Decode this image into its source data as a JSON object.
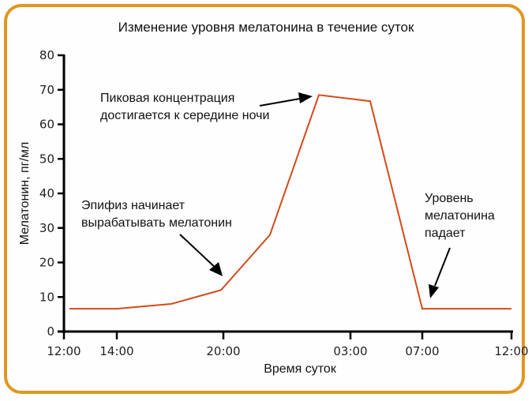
{
  "chart_data": {
    "type": "line",
    "title": "Изменение уровня мелатонина в течение суток",
    "xlabel": "Время суток",
    "ylabel": "Мелатонин, пг/мл",
    "ylim": [
      0,
      80
    ],
    "yticks": [
      0,
      10,
      20,
      30,
      40,
      50,
      60,
      70,
      80
    ],
    "xticks": [
      "12:00",
      "14:00",
      "20:00",
      "03:00",
      "07:00",
      "12:00"
    ],
    "grid": false,
    "legend": null,
    "series": [
      {
        "name": "Мелатонин",
        "color": "#d44a1a",
        "points": [
          {
            "x": "12:00",
            "y": 6.6
          },
          {
            "x": "14:00",
            "y": 6.6
          },
          {
            "x": "~17:00",
            "y": 8
          },
          {
            "x": "20:00",
            "y": 12
          },
          {
            "x": "~23:00",
            "y": 28
          },
          {
            "x": "~01:00",
            "y": 68.5
          },
          {
            "x": "~04:00",
            "y": 66.7
          },
          {
            "x": "07:00",
            "y": 6.6
          },
          {
            "x": "12:00",
            "y": 6.6
          }
        ]
      }
    ],
    "annotations": [
      {
        "text": "Эпифиз начинает вырабатывать мелатонин",
        "points_to": "20:00"
      },
      {
        "text": "Пиковая концентрация достигается к середине ночи",
        "points_to": "peak ~01:00"
      },
      {
        "text": "Уровень мелатонина падает",
        "points_to": "07:00"
      }
    ]
  },
  "annotations": {
    "a1": {
      "line1": "Эпифиз начинает",
      "line2": "вырабатывать мелатонин"
    },
    "a2": {
      "line1": "Пиковая концентрация",
      "line2": "достигается к середине ночи"
    },
    "a3": {
      "line1": "Уровень",
      "line2": "мелатонина",
      "line3": "падает"
    }
  },
  "colors": {
    "frame": "#e0961f",
    "line": "#d44a1a",
    "axis": "#000000"
  }
}
